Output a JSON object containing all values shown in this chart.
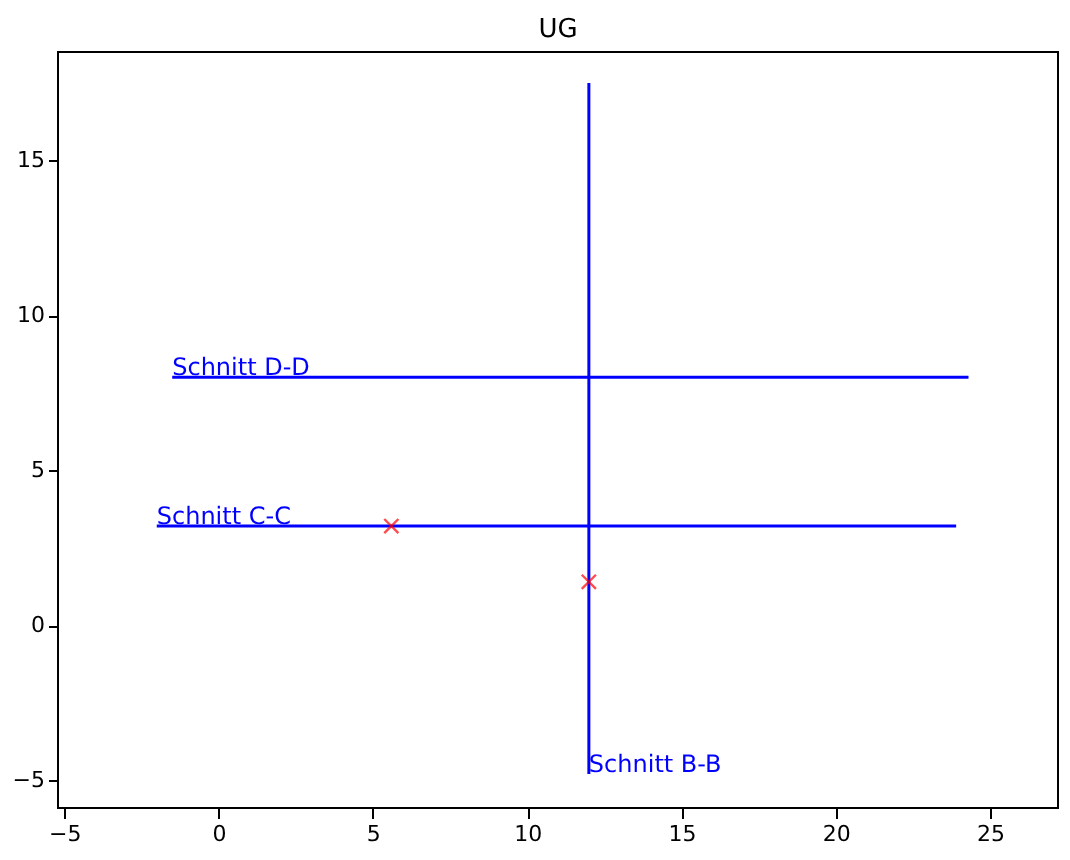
{
  "chart_data": {
    "type": "line",
    "title": "UG",
    "series": [
      {
        "color": "#0000ff",
        "x": [
          12,
          12
        ],
        "values": [
          17.5,
          -4.8
        ]
      },
      {
        "color": "#0000ff",
        "x": [
          -1.5,
          24.3
        ],
        "values": [
          8,
          8
        ]
      },
      {
        "color": "#0000ff",
        "x": [
          -2,
          23.9
        ],
        "values": [
          3.2,
          3.2
        ]
      },
      {
        "type": "scatter",
        "color": "#ff0000",
        "marker": "cross",
        "x": [
          5.6,
          12
        ],
        "values": [
          3.2,
          1.4
        ]
      }
    ],
    "annotations": [
      {
        "text": "Schnitt B-B",
        "x": 12,
        "y": -4.8
      },
      {
        "text": "Schnitt D-D",
        "x": -1.5,
        "y": 8
      },
      {
        "text": "Schnitt C-C",
        "x": -2,
        "y": 3.2
      }
    ],
    "xlim": [
      -5.2,
      27.2
    ],
    "ylim": [
      -5.9,
      18.5
    ],
    "xticks": [
      -5,
      0,
      5,
      10,
      15,
      20,
      25
    ],
    "yticks": [
      -5,
      0,
      5,
      10,
      15
    ],
    "grid": false
  }
}
